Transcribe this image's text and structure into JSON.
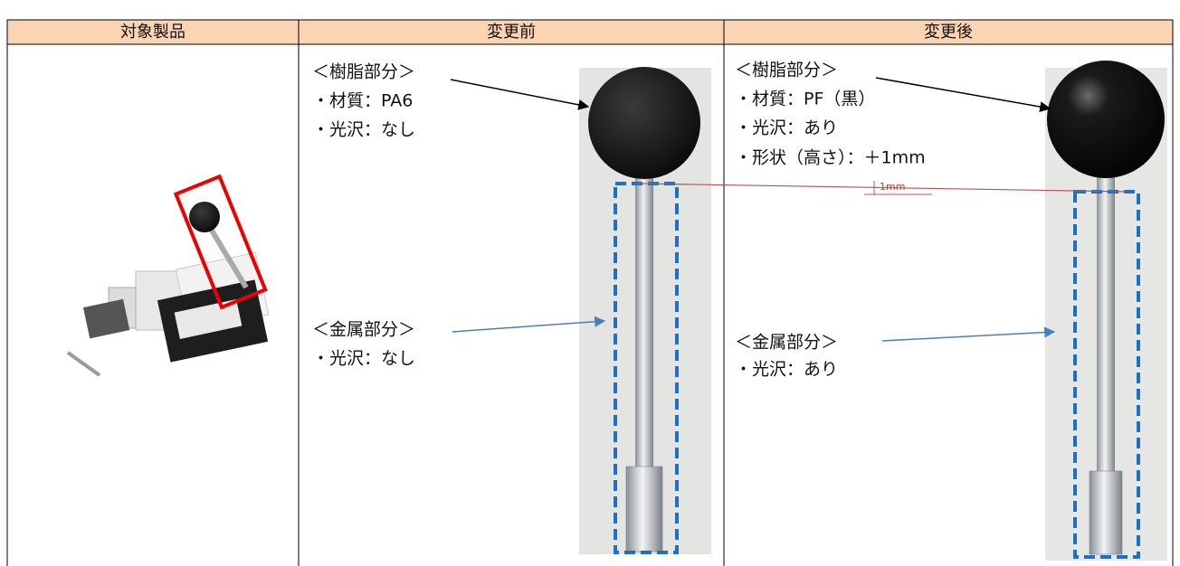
{
  "header": [
    "対象製品",
    "変更前",
    "変更後"
  ],
  "before": {
    "resin_title": "＜樹脂部分＞",
    "resin_lines": [
      "・材質：PA6",
      "・光沢：なし"
    ],
    "metal_title": "＜金属部分＞",
    "metal_lines": [
      "・光沢：なし"
    ]
  },
  "after": {
    "resin_title": "＜樹脂部分＞",
    "resin_lines": [
      "・材質：PF（黒）",
      "・光沢：あり",
      "・形状（高さ）：＋1mm"
    ],
    "metal_title": "＜金属部分＞",
    "metal_lines": [
      "・光沢：あり"
    ]
  },
  "dimension_label": "1mm"
}
